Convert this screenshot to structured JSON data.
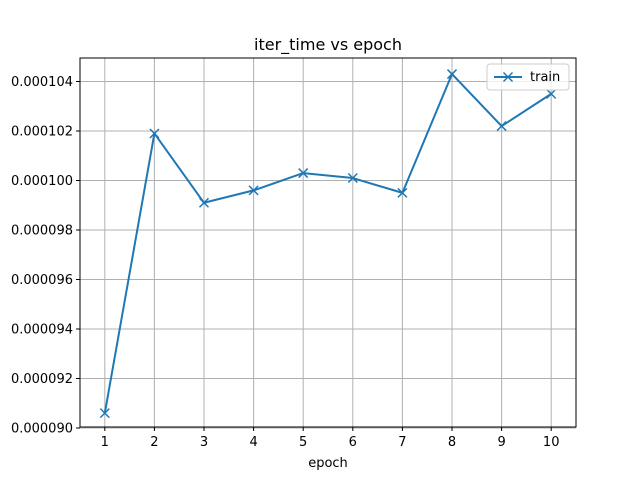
{
  "chart_data": {
    "type": "line",
    "title": "iter_time vs epoch",
    "xlabel": "epoch",
    "ylabel": "",
    "x": [
      1,
      2,
      3,
      4,
      5,
      6,
      7,
      8,
      9,
      10
    ],
    "xlim": [
      0.5,
      10.5
    ],
    "ylim": [
      9.004e-05,
      0.00010495
    ],
    "xticks": [
      1,
      2,
      3,
      4,
      5,
      6,
      7,
      8,
      9,
      10
    ],
    "yticks": [
      9e-05,
      9.2e-05,
      9.4e-05,
      9.6e-05,
      9.8e-05,
      0.0001,
      0.000102,
      0.000104
    ],
    "ytick_labels": [
      "0.000090",
      "0.000092",
      "0.000094",
      "0.000096",
      "0.000098",
      "0.000100",
      "0.000102",
      "0.000104"
    ],
    "grid": true,
    "legend_position": "top-right",
    "marker": "x",
    "series": [
      {
        "name": "train",
        "color": "#1f77b4",
        "values": [
          9.06e-05,
          0.0001019,
          9.91e-05,
          9.96e-05,
          0.0001003,
          0.0001001,
          9.95e-05,
          0.0001043,
          0.0001022,
          0.0001035
        ]
      }
    ]
  }
}
